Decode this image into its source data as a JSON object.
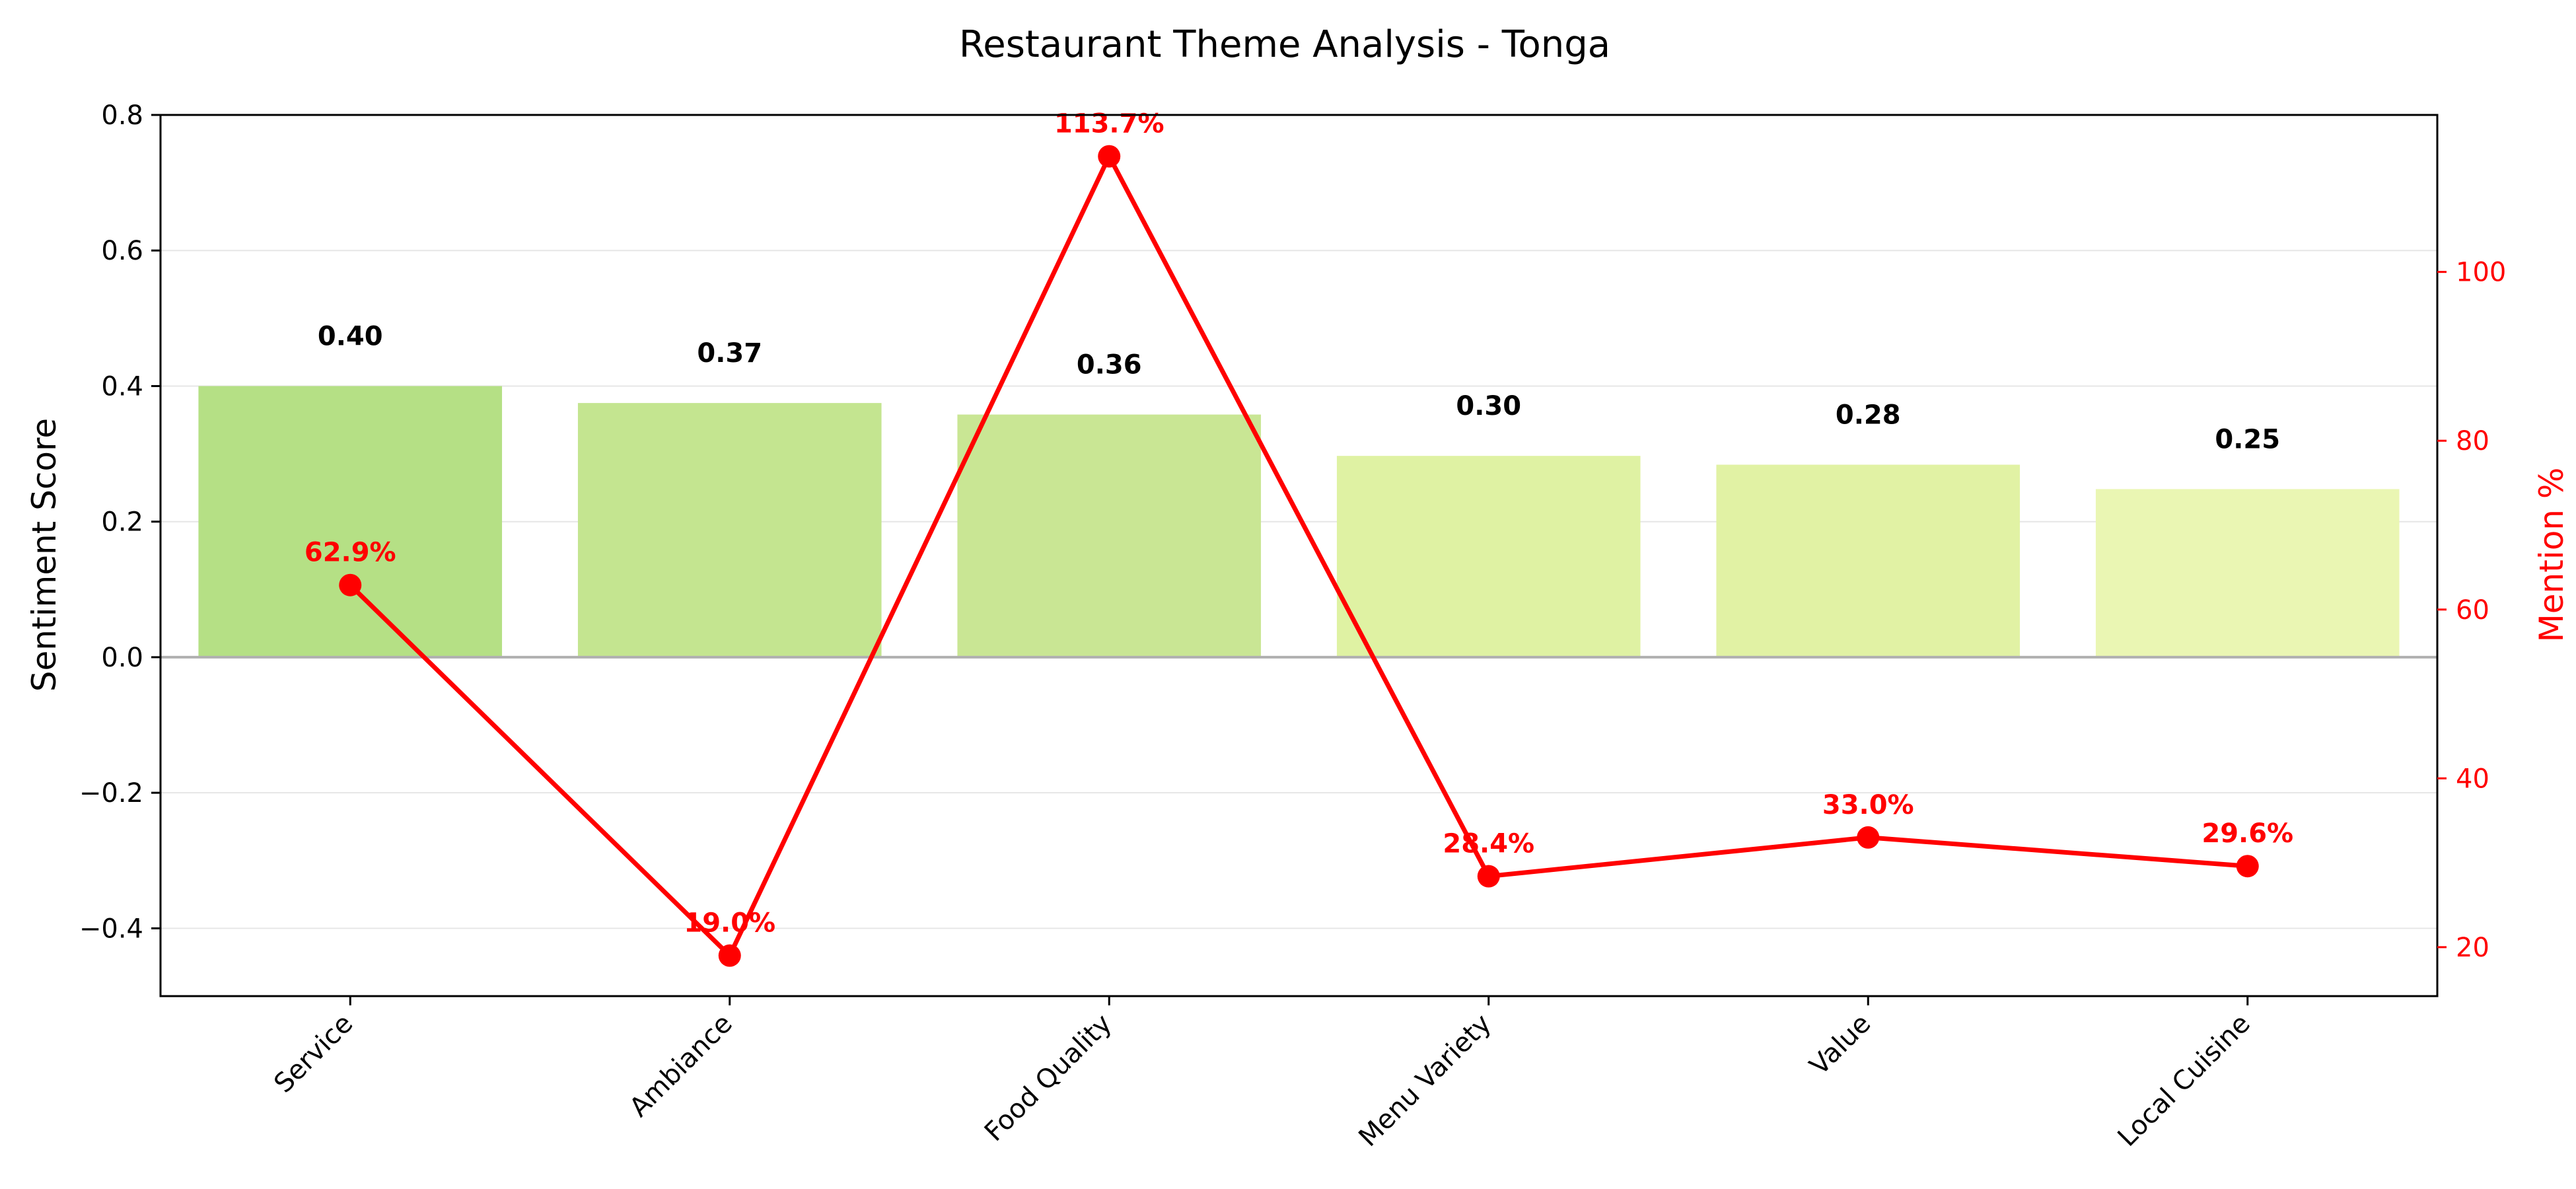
{
  "chart_data": {
    "type": "bar",
    "title": "Restaurant Theme Analysis - Tonga",
    "categories": [
      "Service",
      "Ambiance",
      "Food Quality",
      "Menu Variety",
      "Value",
      "Local Cuisine"
    ],
    "series": [
      {
        "axis": "left",
        "type": "bar",
        "values": [
          0.4,
          0.375,
          0.358,
          0.297,
          0.284,
          0.248
        ],
        "value_labels": [
          "0.40",
          "0.37",
          "0.36",
          "0.30",
          "0.28",
          "0.25"
        ],
        "colors": [
          "#b5e085",
          "#c4e590",
          "#c9e694",
          "#dff2a3",
          "#e1f2a4",
          "#eaf6b3"
        ]
      },
      {
        "axis": "right",
        "type": "line",
        "values": [
          62.9,
          19.0,
          113.7,
          28.4,
          33.0,
          29.6
        ],
        "value_labels": [
          "62.9%",
          "19.0%",
          "113.7%",
          "28.4%",
          "33.0%",
          "29.6%"
        ],
        "color": "#ff0000"
      }
    ],
    "ylabel": "Sentiment Score",
    "y2label": "Mention %",
    "ylim": [
      -0.5,
      0.8
    ],
    "yticks": [
      -0.4,
      -0.2,
      0.0,
      0.2,
      0.4,
      0.6,
      0.8
    ],
    "ytick_labels": [
      "−0.4",
      "−0.2",
      "0.0",
      "0.2",
      "0.4",
      "0.6",
      "0.8"
    ],
    "y2lim": [
      14.2,
      118.6
    ],
    "y2ticks": [
      20,
      40,
      60,
      80,
      100
    ],
    "y2tick_labels": [
      "20",
      "40",
      "60",
      "80",
      "100"
    ],
    "grid": true,
    "zero_line": true,
    "line_color": "#ff0000",
    "grid_color": "#e6e6e6",
    "zero_line_color": "#b0b0b0"
  }
}
